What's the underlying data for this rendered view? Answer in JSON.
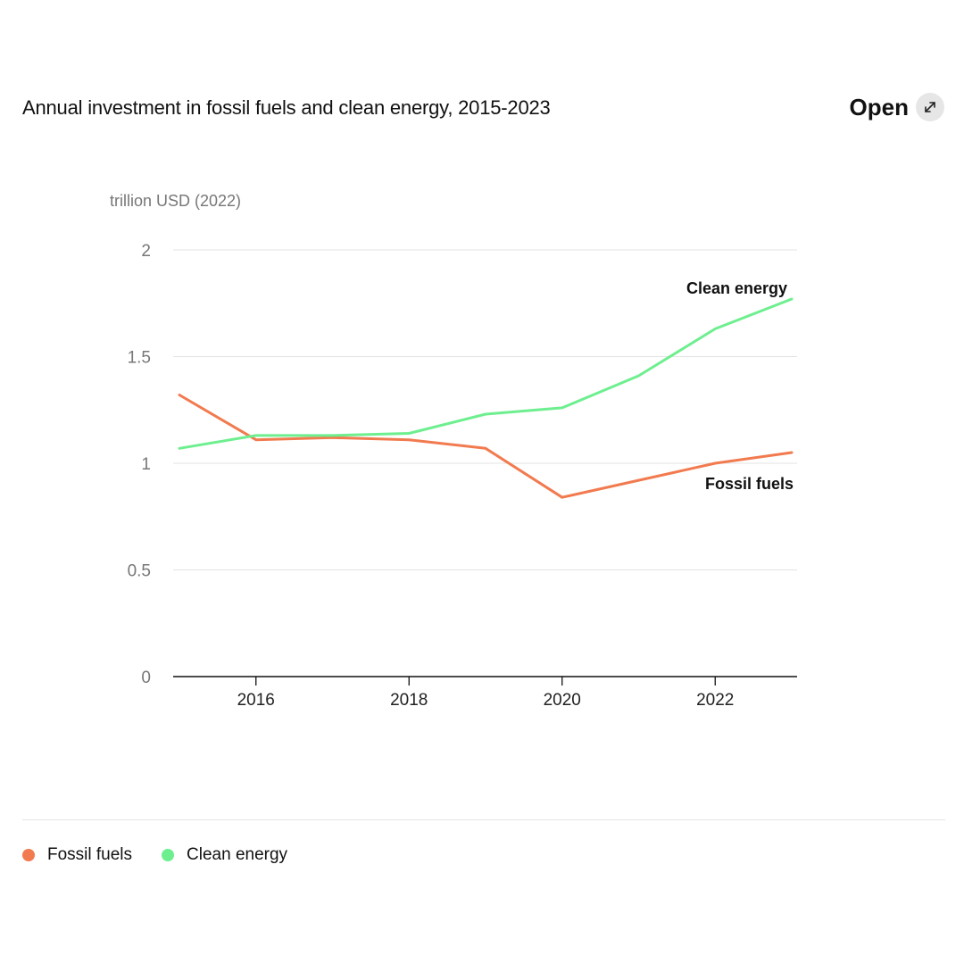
{
  "header": {
    "title": "Annual investment in fossil fuels and clean energy, 2015-2023",
    "open_label": "Open",
    "open_icon": "expand-arrows-icon"
  },
  "chart_data": {
    "type": "line",
    "title": "Annual investment in fossil fuels and clean energy, 2015-2023",
    "ylabel": "trillion USD (2022)",
    "xlabel": "",
    "x": [
      2015,
      2016,
      2017,
      2018,
      2019,
      2020,
      2021,
      2022,
      2023
    ],
    "xlim": [
      2015,
      2023
    ],
    "ylim": [
      0,
      2
    ],
    "x_ticks": [
      "2016",
      "2018",
      "2020",
      "2022"
    ],
    "y_ticks": [
      "0",
      "0.5",
      "1",
      "1.5",
      "2"
    ],
    "grid": true,
    "series": [
      {
        "name": "Fossil fuels",
        "color": "#f27a4f",
        "values": [
          1.32,
          1.11,
          1.12,
          1.11,
          1.07,
          0.84,
          0.92,
          1.0,
          1.05
        ]
      },
      {
        "name": "Clean energy",
        "color": "#6eef8f",
        "values": [
          1.07,
          1.13,
          1.13,
          1.14,
          1.23,
          1.26,
          1.41,
          1.63,
          1.77
        ]
      }
    ],
    "legend_position": "bottom-left"
  },
  "legend": {
    "items": [
      {
        "label": "Fossil fuels",
        "color": "#f27a4f"
      },
      {
        "label": "Clean energy",
        "color": "#6eef8f"
      }
    ]
  }
}
